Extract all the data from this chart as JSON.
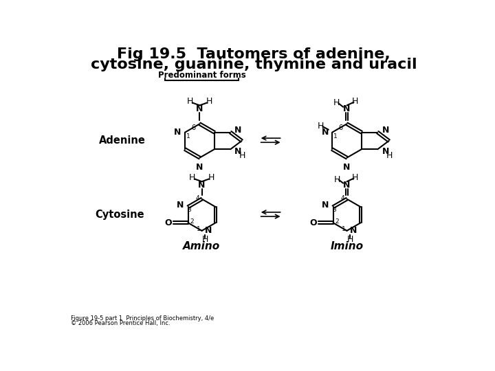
{
  "title_line1": "Fig 19.5  Tautomers of adenine,",
  "title_line2": "cytosine, guanine, thymine and uracil",
  "title_fontsize": 16,
  "title_fontweight": "bold",
  "bg_color": "#ffffff",
  "text_color": "#000000",
  "predominant_label": "Predominant forms",
  "adenine_label": "Adenine",
  "cytosine_label": "Cytosine",
  "amino_label": "Amino",
  "imino_label": "Imino",
  "footer_line1": "Figure 19-5 part 1  Principles of Biochemistry, 4/e",
  "footer_line2": "© 2006 Pearson Prentice Hall, Inc."
}
